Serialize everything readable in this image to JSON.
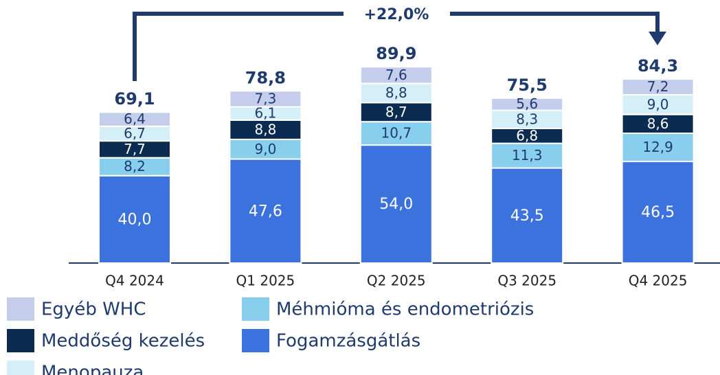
{
  "chart_data": {
    "type": "stacked_bar",
    "annotation": "+22,0%",
    "categories": [
      "Q4 2024",
      "Q1 2025",
      "Q2 2025",
      "Q3 2025",
      "Q4 2025"
    ],
    "series": [
      {
        "name": "Fogamzásgátlás",
        "color": "#3c72dd",
        "values": [
          40.0,
          47.6,
          54.0,
          43.5,
          46.5
        ],
        "value_labels": [
          "40,0",
          "47,6",
          "54,0",
          "43,5",
          "46,5"
        ]
      },
      {
        "name": "Méhmióma és endometriózis",
        "color": "#88cfee",
        "values": [
          8.2,
          9.0,
          10.7,
          11.3,
          12.9
        ],
        "value_labels": [
          "8,2",
          "9,0",
          "10,7",
          "11,3",
          "12,9"
        ]
      },
      {
        "name": "Meddőség kezelés",
        "color": "#0c2b50",
        "values": [
          7.7,
          8.8,
          8.7,
          6.8,
          8.6
        ],
        "value_labels": [
          "7,7",
          "8,8",
          "8,7",
          "6,8",
          "8,6"
        ]
      },
      {
        "name": "Menopauza",
        "color": "#d5eff9",
        "values": [
          6.7,
          6.1,
          8.8,
          8.3,
          9.0
        ],
        "value_labels": [
          "6,7",
          "6,1",
          "8,8",
          "8,3",
          "9,0"
        ]
      },
      {
        "name": "Egyéb WHC",
        "color": "#c4cdeb",
        "values": [
          6.4,
          7.3,
          7.6,
          5.6,
          7.2
        ],
        "value_labels": [
          "6,4",
          "7,3",
          "7,6",
          "5,6",
          "7,2"
        ]
      }
    ],
    "totals": [
      69.1,
      78.8,
      89.9,
      75.5,
      84.3
    ],
    "total_labels": [
      "69,1",
      "78,8",
      "89,9",
      "75,5",
      "84,3"
    ]
  }
}
